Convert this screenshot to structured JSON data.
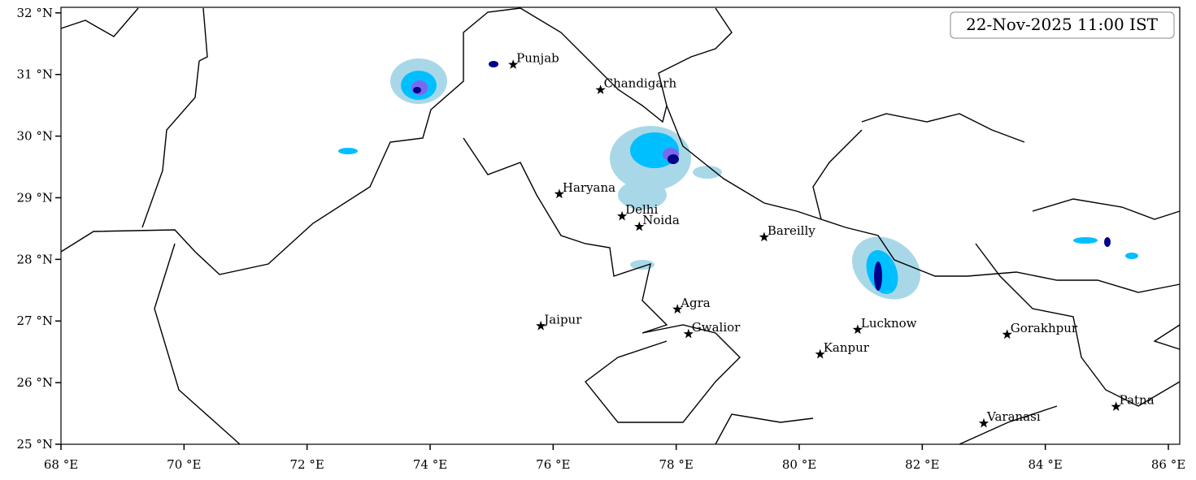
{
  "map": {
    "title": "22-Nov-2025 11:00 IST",
    "xlim": [
      68,
      86.185
    ],
    "ylim": [
      25,
      32.09
    ],
    "xticks": [
      {
        "value": 68,
        "label": "68 °E"
      },
      {
        "value": 70,
        "label": "70 °E"
      },
      {
        "value": 72,
        "label": "72 °E"
      },
      {
        "value": 74,
        "label": "74 °E"
      },
      {
        "value": 76,
        "label": "76 °E"
      },
      {
        "value": 78,
        "label": "78 °E"
      },
      {
        "value": 80,
        "label": "80 °E"
      },
      {
        "value": 82,
        "label": "82 °E"
      },
      {
        "value": 84,
        "label": "84 °E"
      },
      {
        "value": 86,
        "label": "86 °E"
      }
    ],
    "yticks": [
      {
        "value": 25,
        "label": "25 °N"
      },
      {
        "value": 26,
        "label": "26 °N"
      },
      {
        "value": 27,
        "label": "27 °N"
      },
      {
        "value": 28,
        "label": "28 °N"
      },
      {
        "value": 29,
        "label": "29 °N"
      },
      {
        "value": 30,
        "label": "30 °N"
      },
      {
        "value": 31,
        "label": "31 °N"
      },
      {
        "value": 32,
        "label": "32 °N"
      }
    ],
    "cities": [
      {
        "name": "Punjab",
        "lon": 75.35,
        "lat": 31.16
      },
      {
        "name": "Chandigarh",
        "lon": 76.77,
        "lat": 30.75
      },
      {
        "name": "Haryana",
        "lon": 76.1,
        "lat": 29.06
      },
      {
        "name": "Delhi",
        "lon": 77.12,
        "lat": 28.7
      },
      {
        "name": "Noida",
        "lon": 77.4,
        "lat": 28.53
      },
      {
        "name": "Bareilly",
        "lon": 79.43,
        "lat": 28.36
      },
      {
        "name": "Agra",
        "lon": 78.02,
        "lat": 27.19
      },
      {
        "name": "Jaipur",
        "lon": 75.8,
        "lat": 26.92
      },
      {
        "name": "Gwalior",
        "lon": 78.2,
        "lat": 26.79
      },
      {
        "name": "Lucknow",
        "lon": 80.95,
        "lat": 26.86
      },
      {
        "name": "Kanpur",
        "lon": 80.34,
        "lat": 26.46
      },
      {
        "name": "Gorakhpur",
        "lon": 83.38,
        "lat": 26.78
      },
      {
        "name": "Varanasi",
        "lon": 83.0,
        "lat": 25.34
      },
      {
        "name": "Patna",
        "lon": 85.15,
        "lat": 25.61
      }
    ]
  }
}
